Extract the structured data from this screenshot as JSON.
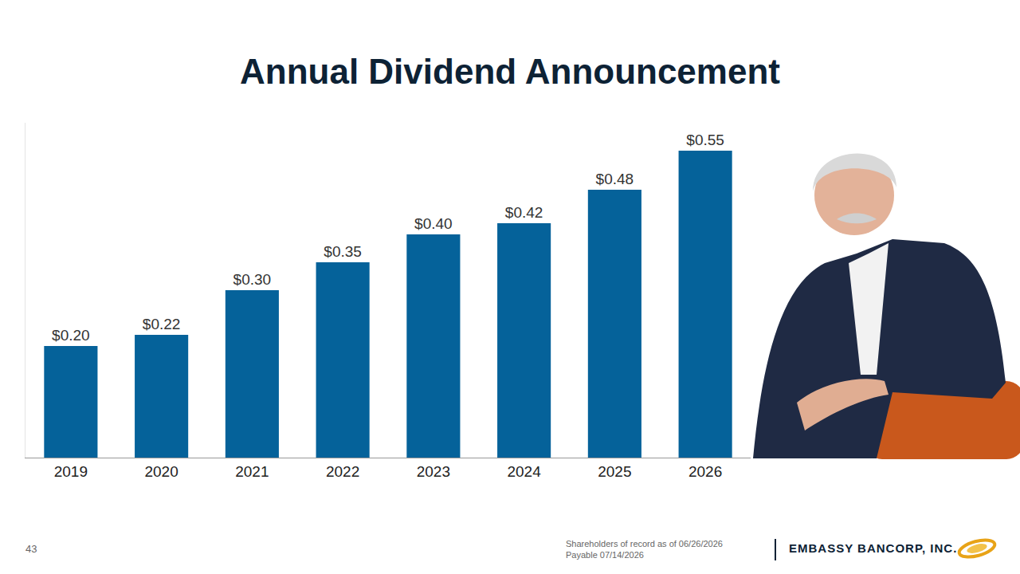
{
  "chart_data": {
    "type": "bar",
    "title": "Annual Dividend Announcement",
    "categories": [
      "2019",
      "2020",
      "2021",
      "2022",
      "2023",
      "2024",
      "2025",
      "2026"
    ],
    "values": [
      0.2,
      0.22,
      0.3,
      0.35,
      0.4,
      0.42,
      0.48,
      0.55
    ],
    "value_labels": [
      "$0.20",
      "$0.22",
      "$0.30",
      "$0.35",
      "$0.40",
      "$0.42",
      "$0.48",
      "$0.55"
    ],
    "color": "#05629a",
    "ylim": [
      0,
      0.6
    ],
    "grid": false,
    "data_labels": true,
    "tick_labels": "x"
  },
  "footer": {
    "page_number": 43,
    "notes": [
      "Shareholders of record as of 06/26/2026",
      "Payable 07/14/2026"
    ],
    "logo_text": "EMBASSY BANCORP, INC."
  }
}
